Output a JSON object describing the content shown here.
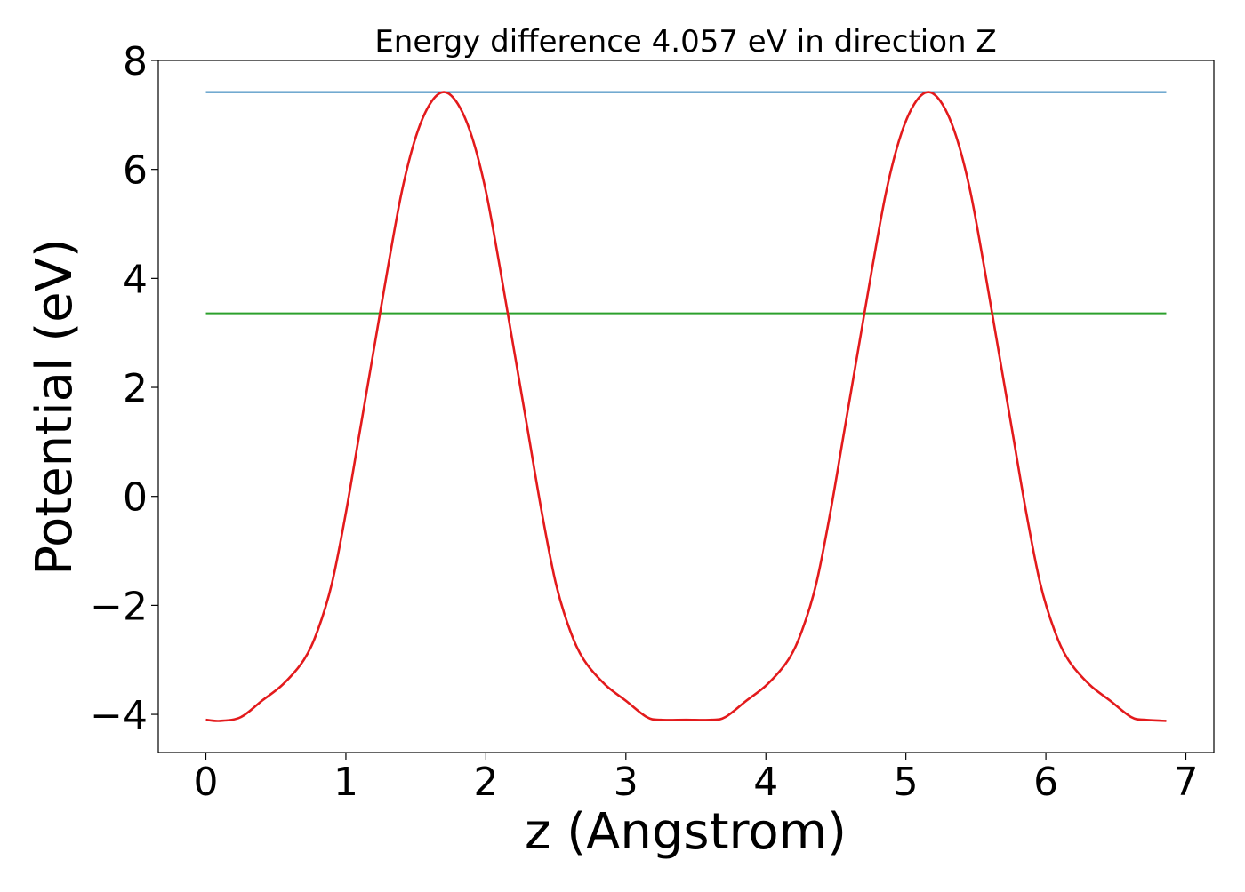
{
  "chart_data": {
    "type": "line",
    "title": "Energy difference 4.057 eV in direction Z",
    "xlabel": "z (Angstrom)",
    "ylabel": "Potential (eV)",
    "xlim": [
      -0.34,
      7.2
    ],
    "ylim": [
      -4.7,
      8.0
    ],
    "xticks": [
      0,
      1,
      2,
      3,
      4,
      5,
      6,
      7
    ],
    "yticks": [
      -4,
      -2,
      0,
      2,
      4,
      6,
      8
    ],
    "xtick_labels": [
      "0",
      "1",
      "2",
      "3",
      "4",
      "5",
      "6",
      "7"
    ],
    "ytick_labels": [
      "−4",
      "−2",
      "0",
      "2",
      "4",
      "6",
      "8"
    ],
    "grid": false,
    "legend": "none",
    "series": [
      {
        "color": "#1f77b4",
        "x": [
          0,
          6.86
        ],
        "y": [
          7.42,
          7.42
        ]
      },
      {
        "color": "#2ca02c",
        "x": [
          0,
          6.86
        ],
        "y": [
          3.36,
          3.36
        ]
      },
      {
        "color": "#e31a1c",
        "x": [
          0.0,
          0.1,
          0.25,
          0.4,
          0.55,
          0.7,
          0.8,
          0.9,
          1.0,
          1.1,
          1.2,
          1.3,
          1.4,
          1.5,
          1.6,
          1.7,
          1.8,
          1.9,
          2.0,
          2.1,
          2.2,
          2.3,
          2.4,
          2.5,
          2.6,
          2.7,
          2.85,
          3.0,
          3.15,
          3.25,
          3.43,
          3.61,
          3.71,
          3.86,
          4.01,
          4.16,
          4.26,
          4.36,
          4.46,
          4.56,
          4.66,
          4.76,
          4.86,
          4.96,
          5.06,
          5.16,
          5.26,
          5.36,
          5.46,
          5.56,
          5.66,
          5.76,
          5.86,
          5.96,
          6.06,
          6.16,
          6.31,
          6.46,
          6.61,
          6.71,
          6.86
        ],
        "y": [
          -4.1,
          -4.12,
          -4.05,
          -3.75,
          -3.45,
          -3.0,
          -2.45,
          -1.6,
          -0.3,
          1.2,
          2.7,
          4.2,
          5.6,
          6.6,
          7.2,
          7.42,
          7.2,
          6.6,
          5.6,
          4.2,
          2.7,
          1.2,
          -0.3,
          -1.6,
          -2.45,
          -3.0,
          -3.45,
          -3.75,
          -4.05,
          -4.1,
          -4.1,
          -4.1,
          -4.05,
          -3.75,
          -3.45,
          -3.0,
          -2.45,
          -1.6,
          -0.3,
          1.2,
          2.7,
          4.2,
          5.6,
          6.6,
          7.2,
          7.42,
          7.2,
          6.6,
          5.6,
          4.2,
          2.7,
          1.2,
          -0.3,
          -1.6,
          -2.45,
          -3.0,
          -3.45,
          -3.75,
          -4.05,
          -4.1,
          -4.12
        ]
      }
    ]
  }
}
